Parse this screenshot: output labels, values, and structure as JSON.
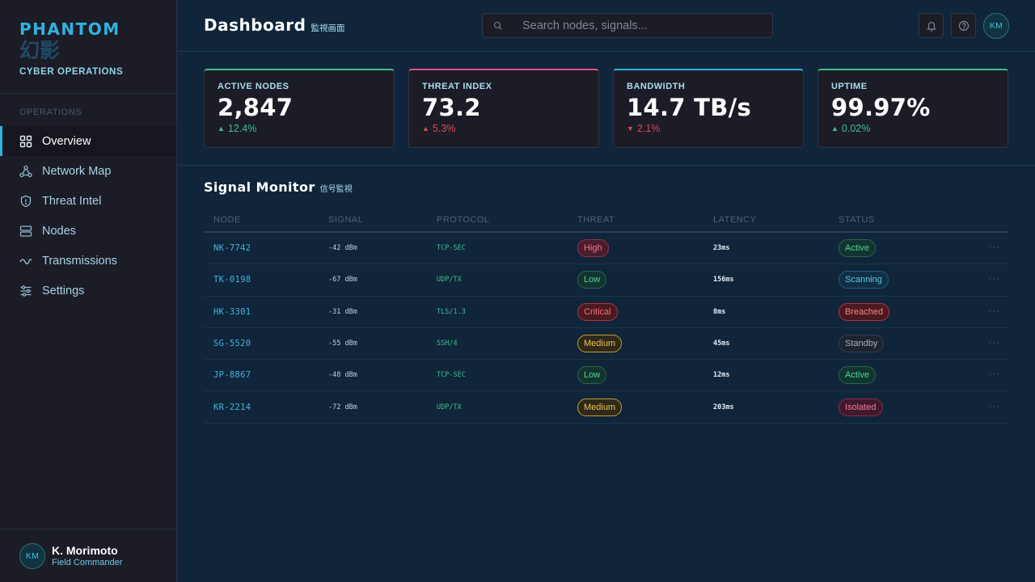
{
  "brand": {
    "name": "PHANTOM",
    "kanji": "幻影",
    "subtitle": "CYBER OPERATIONS"
  },
  "sidebar": {
    "section_label": "OPERATIONS",
    "items": [
      {
        "label": "Overview",
        "icon": "grid-icon",
        "active": true
      },
      {
        "label": "Network Map",
        "icon": "network-icon",
        "active": false
      },
      {
        "label": "Threat Intel",
        "icon": "shield-icon",
        "active": false
      },
      {
        "label": "Nodes",
        "icon": "server-icon",
        "active": false
      },
      {
        "label": "Transmissions",
        "icon": "wave-icon",
        "active": false
      },
      {
        "label": "Settings",
        "icon": "sliders-icon",
        "active": false
      }
    ],
    "user": {
      "initials": "KM",
      "name": "K. Morimoto",
      "role": "Field Commander"
    }
  },
  "header": {
    "title": "Dashboard",
    "title_jp": "監視画面",
    "search_placeholder": "Search nodes, signals...",
    "avatar_initials": "KM"
  },
  "kpis": [
    {
      "label": "ACTIVE NODES",
      "value": "2,847",
      "delta": "12.4%",
      "direction": "up",
      "accent": "#3bc08f"
    },
    {
      "label": "THREAT INDEX",
      "value": "73.2",
      "delta": "5.3%",
      "direction": "up-bad",
      "accent": "#e0508a"
    },
    {
      "label": "BANDWIDTH",
      "value": "14.7 TB/s",
      "delta": "2.1%",
      "direction": "down",
      "accent": "#2fb3e0"
    },
    {
      "label": "UPTIME",
      "value": "99.97%",
      "delta": "0.02%",
      "direction": "up",
      "accent": "#3bc08f"
    }
  ],
  "signal_monitor": {
    "title": "Signal Monitor",
    "title_jp": "信号監視",
    "columns": [
      "NODE",
      "SIGNAL",
      "PROTOCOL",
      "THREAT",
      "LATENCY",
      "STATUS"
    ],
    "rows": [
      {
        "node": "NK-7742",
        "signal": "-42 dBm",
        "protocol": "TCP-SEC",
        "threat": "High",
        "latency": "23ms",
        "status": "Active"
      },
      {
        "node": "TK-0198",
        "signal": "-67 dBm",
        "protocol": "UDP/TX",
        "threat": "Low",
        "latency": "156ms",
        "status": "Scanning"
      },
      {
        "node": "HK-3301",
        "signal": "-31 dBm",
        "protocol": "TLS/1.3",
        "threat": "Critical",
        "latency": "8ms",
        "status": "Breached"
      },
      {
        "node": "SG-5520",
        "signal": "-55 dBm",
        "protocol": "SSH/4",
        "threat": "Medium",
        "latency": "45ms",
        "status": "Standby"
      },
      {
        "node": "JP-8867",
        "signal": "-48 dBm",
        "protocol": "TCP-SEC",
        "threat": "Low",
        "latency": "12ms",
        "status": "Active"
      },
      {
        "node": "KR-2214",
        "signal": "-72 dBm",
        "protocol": "UDP/TX",
        "threat": "Medium",
        "latency": "203ms",
        "status": "Isolated"
      }
    ],
    "more_glyph": "···"
  },
  "colors": {
    "accent": "#2fb3e0",
    "threat": {
      "High": {
        "fg": "#f2788a",
        "bg": "#4a1d2c",
        "border": "#9c2f45"
      },
      "Low": {
        "fg": "#4fd39b",
        "bg": "#13342e",
        "border": "#22694f"
      },
      "Critical": {
        "fg": "#ff6a6a",
        "bg": "#4a1a22",
        "border": "#b3333e"
      },
      "Medium": {
        "fg": "#f2c04a",
        "bg": "#2e2a1a",
        "border": "#c79a2c"
      }
    },
    "status": {
      "Active": {
        "fg": "#4fd39b",
        "bg": "#13342e",
        "border": "#22694f"
      },
      "Scanning": {
        "fg": "#5cc7ec",
        "bg": "#112f43",
        "border": "#1f5f80"
      },
      "Breached": {
        "fg": "#ff8080",
        "bg": "#4a1a22",
        "border": "#b3333e"
      },
      "Standby": {
        "fg": "#a7b0bb",
        "bg": "#1c2430",
        "border": "#303c4b"
      },
      "Isolated": {
        "fg": "#f3779a",
        "bg": "#3f1a2c",
        "border": "#8c2a4c"
      }
    }
  }
}
